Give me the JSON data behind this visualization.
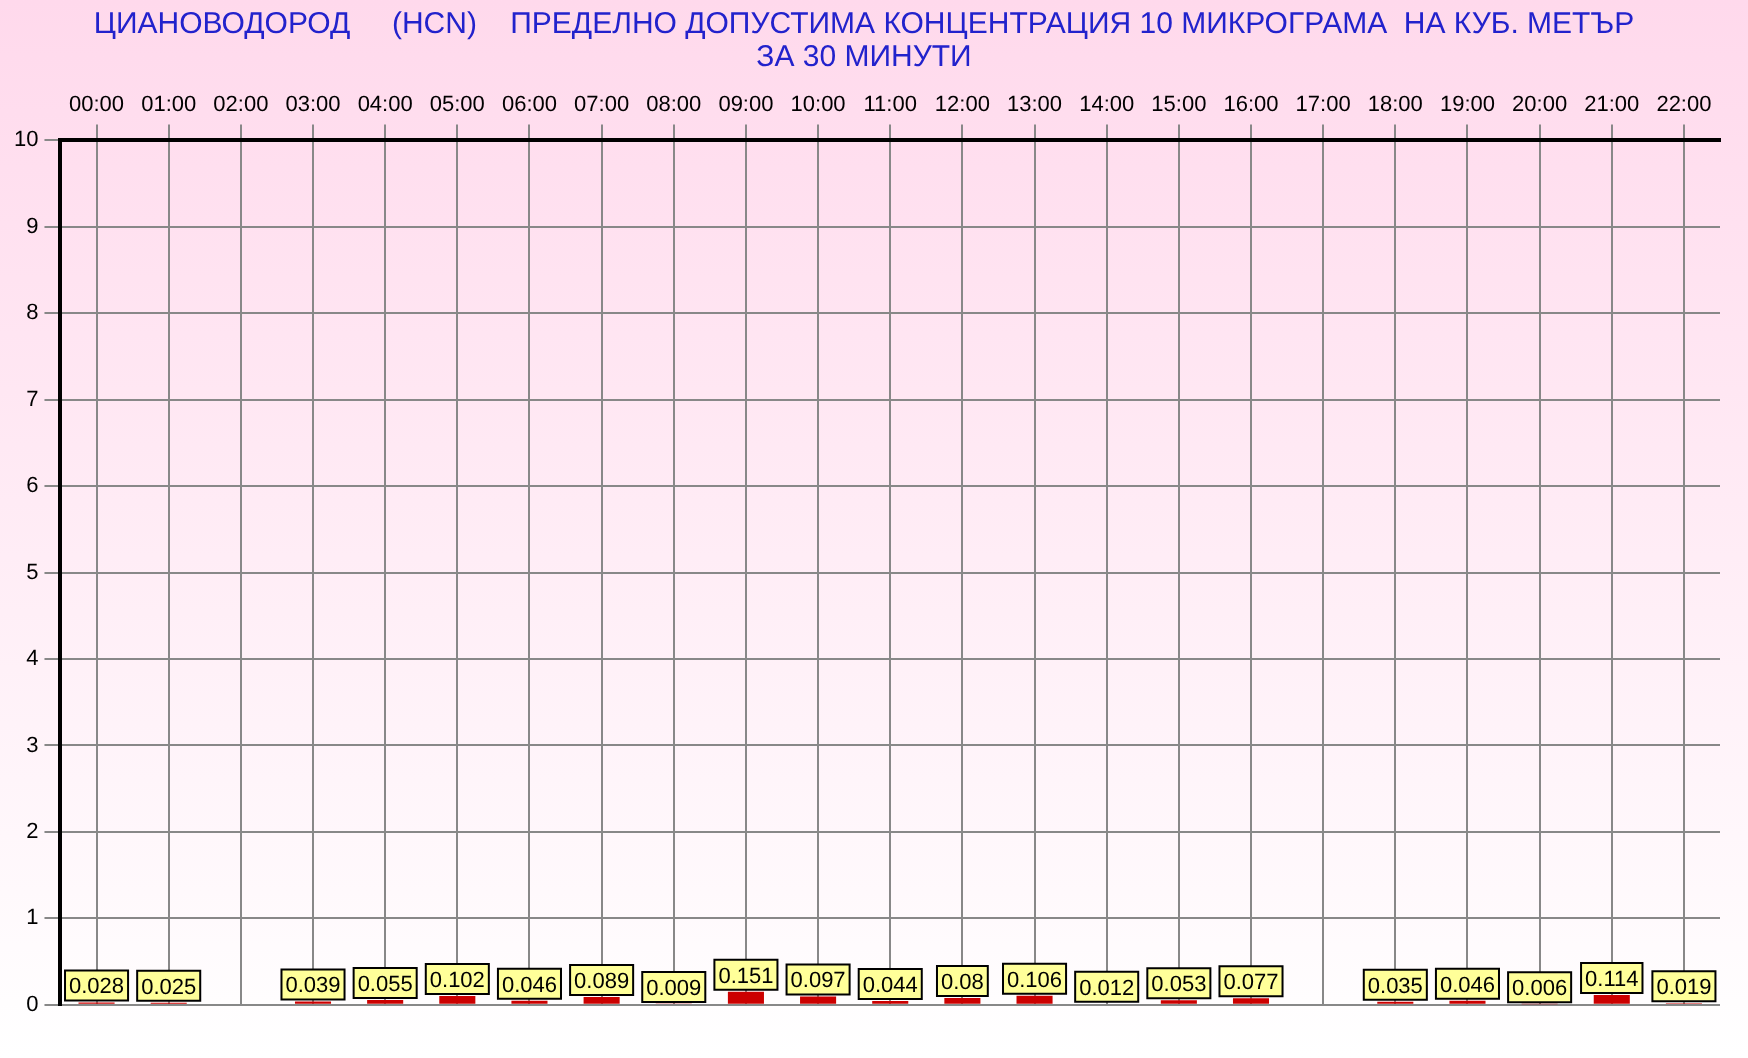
{
  "chart_data": {
    "type": "bar",
    "title": "ЦИАНОВОДОРОД     (HCN)    ПРЕДЕЛНО ДОПУСТИМА КОНЦЕНТРАЦИЯ 10 МИКРОГРАМА  НА КУБ. МЕТЪР ЗА 30 МИНУТИ",
    "categories": [
      "00:00",
      "01:00",
      "02:00",
      "03:00",
      "04:00",
      "05:00",
      "06:00",
      "07:00",
      "08:00",
      "09:00",
      "10:00",
      "11:00",
      "12:00",
      "13:00",
      "14:00",
      "15:00",
      "16:00",
      "17:00",
      "18:00",
      "19:00",
      "20:00",
      "21:00",
      "22:00"
    ],
    "values": [
      0.028,
      0.025,
      null,
      0.039,
      0.055,
      0.102,
      0.046,
      0.089,
      0.009,
      0.151,
      0.097,
      0.044,
      0.08,
      0.106,
      0.012,
      0.053,
      0.077,
      null,
      0.035,
      0.046,
      0.006,
      0.114,
      0.019
    ],
    "color": "#cc0000",
    "ylim": [
      0,
      10
    ],
    "yticks": [
      0,
      1,
      2,
      3,
      4,
      5,
      6,
      7,
      8,
      9,
      10
    ],
    "grid": true,
    "data_labels": true
  }
}
